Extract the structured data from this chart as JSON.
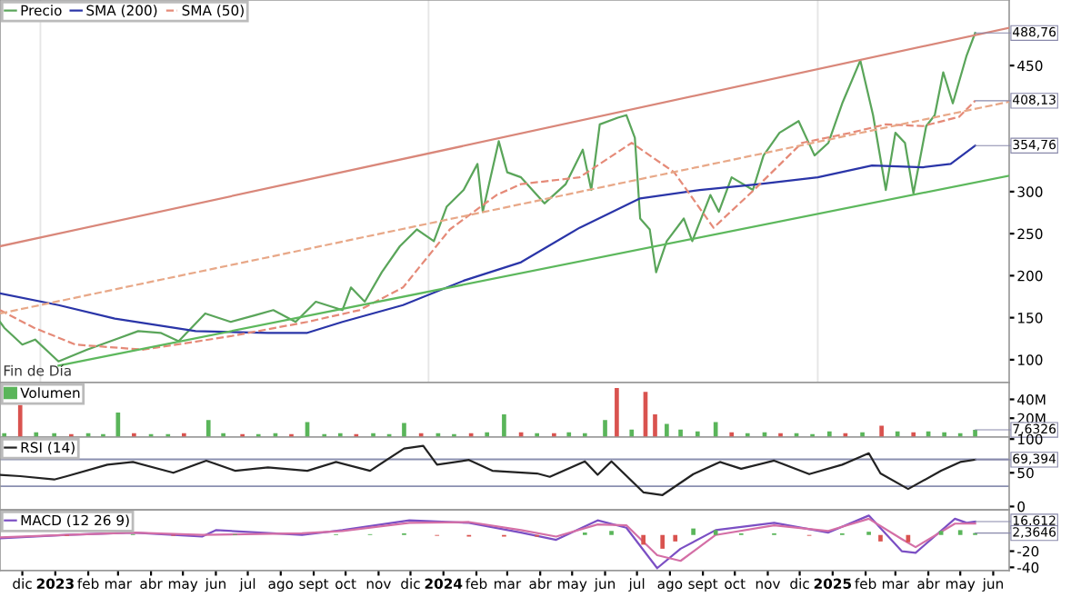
{
  "chart_data": [
    {
      "type": "line",
      "legend": "top left",
      "tick_labels": "y",
      "xlim": [
        "2022-11-24",
        "2025-06-30"
      ],
      "ylim": [
        73,
        528
      ],
      "yticks": [
        100,
        150,
        200,
        250,
        300,
        450
      ],
      "annotations": [
        "Fin de Día",
        {
          "text": "488,76",
          "x": "2025-05-29",
          "y": 488.76
        },
        {
          "text": "408,13",
          "x": "2025-05-29",
          "y": 408.13
        },
        {
          "text": "354,76",
          "x": "2025-05-29",
          "y": 354.76
        }
      ],
      "ref_lines": [
        {
          "axis": "x",
          "value": "2023-01-01",
          "color": "#e6e6e6"
        },
        {
          "axis": "x",
          "value": "2024-01-01",
          "color": "#e6e6e6"
        },
        {
          "axis": "x",
          "value": "2025-01-01",
          "color": "#e6e6e6"
        }
      ],
      "series": [
        {
          "name": "Precio",
          "color": "#5aa55a",
          "x": [
            "2022-11-24",
            "2022-11-28",
            "2022-12-15",
            "2022-12-27",
            "2023-01-18",
            "2023-02-14",
            "2023-03-12",
            "2023-04-03",
            "2023-04-24",
            "2023-05-11",
            "2023-06-05",
            "2023-06-29",
            "2023-07-22",
            "2023-08-08",
            "2023-08-29",
            "2023-09-17",
            "2023-10-12",
            "2023-10-20",
            "2023-11-02",
            "2023-11-18",
            "2023-12-05",
            "2023-12-21",
            "2024-01-06",
            "2024-01-18",
            "2024-02-03",
            "2024-02-16",
            "2024-02-21",
            "2024-03-07",
            "2024-03-15",
            "2024-03-28",
            "2024-04-19",
            "2024-05-09",
            "2024-05-25",
            "2024-06-02",
            "2024-06-10",
            "2024-06-27",
            "2024-07-05",
            "2024-07-13",
            "2024-07-18",
            "2024-07-27",
            "2024-08-02",
            "2024-08-12",
            "2024-08-28",
            "2024-09-05",
            "2024-09-22",
            "2024-09-30",
            "2024-10-12",
            "2024-11-01",
            "2024-11-11",
            "2024-11-26",
            "2024-12-14",
            "2024-12-29",
            "2025-01-11",
            "2025-01-24",
            "2025-02-10",
            "2025-02-22",
            "2025-03-06",
            "2025-03-15",
            "2025-03-24",
            "2025-04-01",
            "2025-04-13",
            "2025-04-21",
            "2025-04-29",
            "2025-05-08",
            "2025-05-21",
            "2025-05-29"
          ],
          "values": [
            145,
            138,
            118,
            124,
            98,
            112,
            124,
            134,
            132,
            122,
            155,
            145,
            153,
            159,
            145,
            169,
            159,
            186,
            169,
            204,
            235,
            255,
            241,
            282,
            302,
            333,
            276,
            360,
            323,
            317,
            286,
            309,
            350,
            302,
            380,
            388,
            391,
            364,
            268,
            255,
            204,
            241,
            268,
            241,
            296,
            276,
            317,
            302,
            343,
            370,
            384,
            343,
            358,
            405,
            456,
            391,
            302,
            370,
            358,
            298,
            378,
            391,
            442,
            405,
            462,
            488.76
          ]
        },
        {
          "name": "SMA (200)",
          "color": "#2a35a8",
          "x": [
            "2022-11-24",
            "2023-01-18",
            "2023-03-12",
            "2023-05-27",
            "2023-08-03",
            "2023-09-09",
            "2023-10-12",
            "2023-12-08",
            "2024-02-03",
            "2024-03-28",
            "2024-05-22",
            "2024-07-18",
            "2024-09-12",
            "2024-11-07",
            "2025-01-01",
            "2025-02-21",
            "2025-04-10",
            "2025-05-06",
            "2025-05-29"
          ],
          "values": [
            179,
            165,
            149,
            134,
            132,
            132,
            145,
            165,
            194,
            216,
            257,
            292,
            302,
            309,
            317,
            331,
            329,
            333,
            354.76
          ]
        },
        {
          "name": "SMA (50)",
          "color": "#e58a78",
          "line_style": "dashed",
          "x": [
            "2022-11-24",
            "2022-12-26",
            "2023-02-03",
            "2023-04-08",
            "2023-06-29",
            "2023-09-09",
            "2023-10-28",
            "2023-12-08",
            "2024-01-21",
            "2024-03-05",
            "2024-03-28",
            "2024-05-22",
            "2024-07-10",
            "2024-08-19",
            "2024-09-25",
            "2024-11-02",
            "2024-12-17",
            "2025-02-01",
            "2025-03-06",
            "2025-04-10",
            "2025-05-14",
            "2025-05-29"
          ],
          "values": [
            159,
            138,
            118,
            112,
            128,
            145,
            159,
            186,
            255,
            296,
            309,
            317,
            358,
            323,
            257,
            302,
            358,
            370,
            380,
            378,
            389,
            408.13
          ]
        },
        {
          "color": "#d9877a",
          "x": [
            "2022-11-24",
            "2025-06-30"
          ],
          "values": [
            235,
            495
          ]
        },
        {
          "color": "#e8a888",
          "line_style": "dashed",
          "x": [
            "2022-11-24",
            "2025-06-30"
          ],
          "values": [
            155,
            407
          ]
        },
        {
          "color": "#5db85d",
          "x": [
            "2023-01-18",
            "2025-06-30"
          ],
          "values": [
            93,
            319
          ]
        }
      ]
    },
    {
      "type": "bar",
      "legend": "top left",
      "tick_labels": "y",
      "xlim": [
        "2022-11-24",
        "2025-06-30"
      ],
      "ylim": [
        0,
        58
      ],
      "yticks": [
        {
          "value": 40,
          "label": "40M"
        },
        {
          "value": 20,
          "label": "20M"
        }
      ],
      "annotations": [
        {
          "text": "7,6326",
          "x": "2025-05-29",
          "y": 7.6326
        }
      ],
      "series": [
        {
          "name": "Volumen",
          "color": "#5ab55a",
          "x": [
            "2022-11-28",
            "2022-12-13",
            "2022-12-28",
            "2023-01-14",
            "2023-01-30",
            "2023-02-15",
            "2023-03-01",
            "2023-03-15",
            "2023-03-30",
            "2023-04-15",
            "2023-05-01",
            "2023-05-16",
            "2023-06-08",
            "2023-06-22",
            "2023-07-10",
            "2023-07-25",
            "2023-08-10",
            "2023-08-25",
            "2023-09-09",
            "2023-09-25",
            "2023-10-10",
            "2023-10-25",
            "2023-11-10",
            "2023-11-25",
            "2023-12-09",
            "2023-12-25",
            "2024-01-10",
            "2024-01-25",
            "2024-02-10",
            "2024-02-25",
            "2024-03-12",
            "2024-03-28",
            "2024-04-12",
            "2024-04-28",
            "2024-05-12",
            "2024-05-27",
            "2024-06-15",
            "2024-06-26",
            "2024-07-10",
            "2024-07-23",
            "2024-08-01",
            "2024-08-12",
            "2024-08-25",
            "2024-09-10",
            "2024-09-27",
            "2024-10-12",
            "2024-10-27",
            "2024-11-12",
            "2024-11-27",
            "2024-12-12",
            "2024-12-27",
            "2025-01-12",
            "2025-01-27",
            "2025-02-12",
            "2025-03-02",
            "2025-03-17",
            "2025-04-01",
            "2025-04-15",
            "2025-04-30",
            "2025-05-15",
            "2025-05-29"
          ],
          "values": [
            4,
            34,
            5,
            4,
            3,
            4,
            3,
            26,
            4,
            3,
            3,
            4,
            18,
            4,
            3,
            3,
            4,
            3,
            16,
            3,
            4,
            3,
            4,
            3,
            15,
            4,
            4,
            3,
            4,
            5,
            24,
            5,
            4,
            4,
            5,
            4,
            18,
            52,
            8,
            48,
            24,
            14,
            8,
            6,
            16,
            5,
            4,
            5,
            4,
            4,
            3,
            6,
            4,
            5,
            12,
            6,
            5,
            6,
            5,
            4,
            7.6326
          ],
          "colors": [
            "#5ab55a",
            "#d9534f",
            "#5ab55a",
            "#5ab55a",
            "#d9534f",
            "#5ab55a",
            "#5ab55a",
            "#5ab55a",
            "#d9534f",
            "#5ab55a",
            "#5ab55a",
            "#d9534f",
            "#5ab55a",
            "#5ab55a",
            "#d9534f",
            "#5ab55a",
            "#5ab55a",
            "#d9534f",
            "#5ab55a",
            "#5ab55a",
            "#5ab55a",
            "#d9534f",
            "#5ab55a",
            "#5ab55a",
            "#5ab55a",
            "#d9534f",
            "#5ab55a",
            "#5ab55a",
            "#d9534f",
            "#5ab55a",
            "#5ab55a",
            "#d9534f",
            "#5ab55a",
            "#d9534f",
            "#5ab55a",
            "#5ab55a",
            "#5ab55a",
            "#d9534f",
            "#5ab55a",
            "#d9534f",
            "#d9534f",
            "#5ab55a",
            "#5ab55a",
            "#5ab55a",
            "#5ab55a",
            "#d9534f",
            "#5ab55a",
            "#5ab55a",
            "#d9534f",
            "#5ab55a",
            "#5ab55a",
            "#5ab55a",
            "#d9534f",
            "#5ab55a",
            "#d9534f",
            "#5ab55a",
            "#d9534f",
            "#5ab55a",
            "#5ab55a",
            "#5ab55a",
            "#5ab55a"
          ]
        }
      ]
    },
    {
      "type": "line",
      "legend": "top left",
      "tick_labels": "y",
      "xlim": [
        "2022-11-24",
        "2025-06-30"
      ],
      "ylim": [
        -5,
        103
      ],
      "yticks": [
        0,
        50,
        100
      ],
      "annotations": [
        {
          "text": "69,394",
          "x": "2025-05-29",
          "y": 69.394
        }
      ],
      "ref_lines": [
        {
          "axis": "y",
          "value": 70,
          "color": "#8a8fb0"
        },
        {
          "axis": "y",
          "value": 30,
          "color": "#8a8fb0"
        }
      ],
      "series": [
        {
          "name": "RSI (14)",
          "color": "#222222",
          "x": [
            "2022-11-24",
            "2022-12-13",
            "2023-01-14",
            "2023-01-26",
            "2023-03-05",
            "2023-03-29",
            "2023-05-06",
            "2023-06-06",
            "2023-07-03",
            "2023-08-03",
            "2023-09-09",
            "2023-10-06",
            "2023-11-07",
            "2023-12-09",
            "2023-12-27",
            "2024-01-09",
            "2024-02-08",
            "2024-03-01",
            "2024-04-12",
            "2024-04-24",
            "2024-05-27",
            "2024-06-08",
            "2024-06-21",
            "2024-07-21",
            "2024-08-08",
            "2024-09-06",
            "2024-10-01",
            "2024-10-21",
            "2024-11-21",
            "2024-12-24",
            "2025-01-24",
            "2025-02-18",
            "2025-03-01",
            "2025-03-27",
            "2025-04-27",
            "2025-05-15",
            "2025-05-29"
          ],
          "values": [
            47,
            45,
            40,
            45,
            62,
            66,
            50,
            68,
            53,
            58,
            53,
            66,
            53,
            86,
            90,
            62,
            69,
            53,
            49,
            44,
            67,
            47,
            67,
            21,
            17,
            48,
            66,
            56,
            68,
            48,
            62,
            79,
            49,
            26,
            53,
            66,
            69.394
          ]
        }
      ]
    },
    {
      "type": "line",
      "legend": "top left",
      "xlim": [
        "2022-11-24",
        "2025-06-30"
      ],
      "ylim": [
        -44,
        31
      ],
      "yticks": [
        -40,
        -20
      ],
      "xticks": [
        {
          "value": "2022-12-15",
          "label": "dic"
        },
        {
          "value": "2023-01-15",
          "label": "2023"
        },
        {
          "value": "2023-02-15",
          "label": "feb"
        },
        {
          "value": "2023-03-15",
          "label": "mar"
        },
        {
          "value": "2023-04-15",
          "label": "abr"
        },
        {
          "value": "2023-05-15",
          "label": "may"
        },
        {
          "value": "2023-06-15",
          "label": "jun"
        },
        {
          "value": "2023-07-15",
          "label": "jul"
        },
        {
          "value": "2023-08-15",
          "label": "ago"
        },
        {
          "value": "2023-09-15",
          "label": "sept"
        },
        {
          "value": "2023-10-15",
          "label": "oct"
        },
        {
          "value": "2023-11-15",
          "label": "nov"
        },
        {
          "value": "2023-12-15",
          "label": "dic"
        },
        {
          "value": "2024-01-15",
          "label": "2024"
        },
        {
          "value": "2024-02-15",
          "label": "feb"
        },
        {
          "value": "2024-03-15",
          "label": "mar"
        },
        {
          "value": "2024-04-15",
          "label": "abr"
        },
        {
          "value": "2024-05-15",
          "label": "may"
        },
        {
          "value": "2024-06-15",
          "label": "jun"
        },
        {
          "value": "2024-07-15",
          "label": "jul"
        },
        {
          "value": "2024-08-15",
          "label": "ago"
        },
        {
          "value": "2024-09-15",
          "label": "sept"
        },
        {
          "value": "2024-10-15",
          "label": "oct"
        },
        {
          "value": "2024-11-15",
          "label": "nov"
        },
        {
          "value": "2024-12-15",
          "label": "dic"
        },
        {
          "value": "2025-01-15",
          "label": "2025"
        },
        {
          "value": "2025-02-15",
          "label": "feb"
        },
        {
          "value": "2025-03-15",
          "label": "mar"
        },
        {
          "value": "2025-04-15",
          "label": "abr"
        },
        {
          "value": "2025-05-15",
          "label": "may"
        },
        {
          "value": "2025-06-15",
          "label": "jun"
        }
      ],
      "annotations": [
        {
          "text": "16,612",
          "x": "2025-05-29",
          "y": 16.612
        },
        {
          "text": "2,3646",
          "x": "2025-05-29",
          "y": 2.3646
        }
      ],
      "series": [
        {
          "type": "bar",
          "color": "#5ab55a",
          "x": [
            "2022-11-24",
            "2023-01-26",
            "2023-03-29",
            "2023-05-06",
            "2023-07-03",
            "2023-09-09",
            "2023-10-06",
            "2023-11-07",
            "2023-12-09",
            "2024-01-09",
            "2024-02-08",
            "2024-03-12",
            "2024-04-12",
            "2024-05-27",
            "2024-06-21",
            "2024-07-21",
            "2024-08-08",
            "2024-08-20",
            "2024-09-06",
            "2024-09-27",
            "2024-10-21",
            "2024-11-21",
            "2024-12-24",
            "2025-01-24",
            "2025-02-18",
            "2025-03-01",
            "2025-03-27",
            "2025-04-27",
            "2025-05-15",
            "2025-05-29"
          ],
          "values": [
            0,
            -1,
            1,
            -1,
            1,
            0,
            1,
            1,
            2,
            -1,
            -2,
            -2,
            -2,
            3,
            5,
            -12,
            -17,
            -8,
            8,
            6,
            2,
            2,
            -1,
            2,
            4,
            -8,
            -9,
            5,
            6,
            2.3646
          ],
          "colors": [
            "#5ab55a",
            "#d9534f",
            "#5ab55a",
            "#d9534f",
            "#5ab55a",
            "#5ab55a",
            "#5ab55a",
            "#5ab55a",
            "#5ab55a",
            "#d9534f",
            "#d9534f",
            "#d9534f",
            "#d9534f",
            "#5ab55a",
            "#5ab55a",
            "#d9534f",
            "#d9534f",
            "#d9534f",
            "#5ab55a",
            "#5ab55a",
            "#5ab55a",
            "#5ab55a",
            "#d9534f",
            "#5ab55a",
            "#5ab55a",
            "#d9534f",
            "#d9534f",
            "#5ab55a",
            "#5ab55a",
            "#5ab55a"
          ]
        },
        {
          "name": "MACD (12 26 9)",
          "color": "#7b4fc4",
          "x": [
            "2022-11-24",
            "2023-01-26",
            "2023-03-29",
            "2023-06-02",
            "2023-06-15",
            "2023-09-04",
            "2023-10-12",
            "2023-12-14",
            "2024-02-08",
            "2024-03-28",
            "2024-04-30",
            "2024-06-08",
            "2024-07-05",
            "2024-08-03",
            "2024-08-25",
            "2024-09-27",
            "2024-11-21",
            "2025-01-11",
            "2025-02-18",
            "2025-03-21",
            "2025-04-03",
            "2025-05-10",
            "2025-05-21",
            "2025-05-29"
          ],
          "values": [
            -4,
            0,
            3,
            -2,
            6,
            0,
            6,
            18,
            15,
            3,
            -6,
            18,
            9,
            -41,
            -17,
            6,
            15,
            3,
            24,
            -20,
            -22,
            20,
            15,
            16.612
          ]
        },
        {
          "color": "#d46fa6",
          "x": [
            "2022-11-24",
            "2023-01-26",
            "2023-03-29",
            "2023-06-02",
            "2023-09-04",
            "2023-10-12",
            "2023-12-14",
            "2024-02-08",
            "2024-03-28",
            "2024-04-30",
            "2024-06-08",
            "2024-07-05",
            "2024-08-03",
            "2024-08-25",
            "2024-09-27",
            "2024-11-21",
            "2025-01-11",
            "2025-02-18",
            "2025-03-21",
            "2025-04-03",
            "2025-05-10",
            "2025-05-29"
          ],
          "values": [
            -3,
            0,
            3,
            0,
            2,
            5,
            15,
            16,
            6,
            -2,
            13,
            12,
            -25,
            -32,
            0,
            12,
            5,
            20,
            -5,
            -15,
            14,
            14.2
          ]
        }
      ]
    }
  ]
}
